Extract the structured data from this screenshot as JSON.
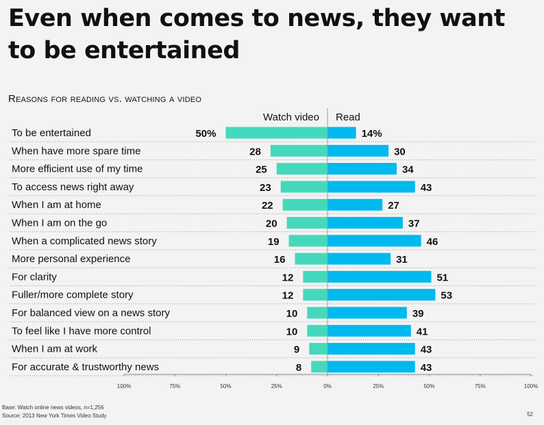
{
  "slide": {
    "title": "Even when comes to news, they want to be entertained",
    "page_number": "52",
    "base_note": "Base: Watch online news videos, n=1,256",
    "source_note": "Source: 2013 New York Times Video Study"
  },
  "chart_data": {
    "type": "bar",
    "orientation": "horizontal-diverging",
    "title": "Reasons for reading vs. watching a video",
    "categories": [
      "To be entertained",
      "When have more spare time",
      "More efficient use of my time",
      "To access news right away",
      "When I am at home",
      "When I am on the go",
      "When a complicated news story",
      "More personal experience",
      "For clarity",
      "Fuller/more complete story",
      "For balanced view on a news story",
      "To feel like I have more control",
      "When I am at work",
      "For accurate & trustworthy news"
    ],
    "series": [
      {
        "name": "Watch video",
        "color": "#44d9bc",
        "direction": "left",
        "values": [
          50,
          28,
          25,
          23,
          22,
          20,
          19,
          16,
          12,
          12,
          10,
          10,
          9,
          8
        ],
        "labels": [
          "50%",
          "28",
          "25",
          "23",
          "22",
          "20",
          "19",
          "16",
          "12",
          "12",
          "10",
          "10",
          "9",
          "8"
        ]
      },
      {
        "name": "Read",
        "color": "#00b9ef",
        "direction": "right",
        "values": [
          14,
          30,
          34,
          43,
          27,
          37,
          46,
          31,
          51,
          53,
          39,
          41,
          43,
          43
        ],
        "labels": [
          "14%",
          "30",
          "34",
          "43",
          "27",
          "37",
          "46",
          "31",
          "51",
          "53",
          "39",
          "41",
          "43",
          "43"
        ]
      }
    ],
    "xlim": [
      -100,
      100
    ],
    "x_ticks": [
      -100,
      -75,
      -50,
      -25,
      0,
      25,
      50,
      75,
      100
    ],
    "x_tick_labels": [
      "100%",
      "75%",
      "50%",
      "25%",
      "0%",
      "25%",
      "50%",
      "75%",
      "100%"
    ],
    "grid": false
  }
}
